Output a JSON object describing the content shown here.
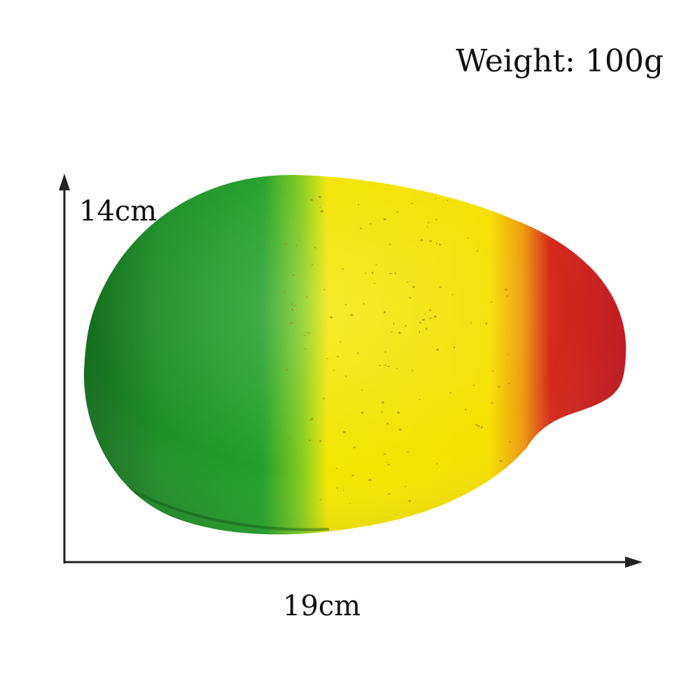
{
  "product": {
    "weight_label": "Weight: 100g",
    "height_label": "14cm",
    "width_label": "19cm",
    "colors": {
      "green": "#1a8f24",
      "yellow": "#f4e200",
      "red": "#d21820",
      "axis": "#222222",
      "speckle": "#b8860b"
    }
  }
}
